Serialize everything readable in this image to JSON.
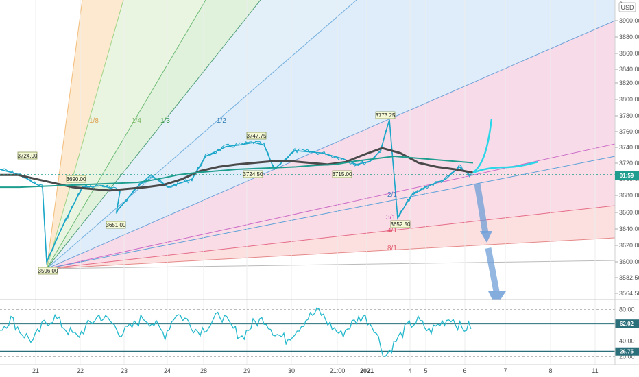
{
  "currency": "USD",
  "price_axis": {
    "ticks": [
      "3900.00",
      "3880.00",
      "3860.00",
      "3840.00",
      "3820.00",
      "3800.00",
      "3780.00",
      "3760.00",
      "3740.00",
      "3720.00",
      "3700.00",
      "3680.00",
      "3660.00",
      "3640.00",
      "3620.00",
      "3600.00",
      "3582.50",
      "3564.50"
    ],
    "top_partial": "3",
    "last_price_tag": "01:59"
  },
  "time_axis": [
    "21",
    "22",
    "23",
    "24",
    "28",
    "29",
    "30",
    "21:00",
    "2021",
    "4",
    "5",
    "6",
    "7",
    "8",
    "11"
  ],
  "fan_labels": [
    "1/8",
    "1/4",
    "1/3",
    "1/2",
    "2/1",
    "3/1",
    "4/1",
    "8/1"
  ],
  "price_callouts": [
    "3724.00",
    "3690.00",
    "3651.00",
    "3596.00",
    "3747.75",
    "3724.50",
    "3715.00",
    "3773.25",
    "3652.50"
  ],
  "rsi_axis": {
    "ticks": [
      "80.00",
      "40.00",
      "20.00"
    ],
    "level_high": "62.02",
    "level_low": "26.75"
  },
  "colors": {
    "ma_dark": "#4a4a4a",
    "ma_teal": "#1f9e8f",
    "rsi": "#22b8cc",
    "hand": "#2ad6e8",
    "arrow": "#6f9fd8",
    "level_line": "#2a6f7a"
  },
  "chart_data": [
    {
      "type": "line",
      "title": "",
      "x_labels": [
        "21",
        "22",
        "23",
        "24",
        "28",
        "29",
        "30",
        "21:00",
        "2021",
        "4",
        "5",
        "6",
        "7",
        "8",
        "11"
      ],
      "series": [
        {
          "values": [
            3712,
            3705,
            3695,
            3690,
            3598,
            3640,
            3690,
            3692,
            3685,
            3660,
            3690,
            3705,
            3690,
            3700,
            3728,
            3740,
            3742,
            3745,
            3742,
            3712,
            3735,
            3732,
            3725,
            3718,
            3722,
            3735,
            3773,
            3652,
            3680,
            3690,
            3700,
            3715,
            3705,
            3705
          ]
        },
        {
          "values": [
            3705,
            3705,
            3700,
            3695,
            3690,
            3688,
            3686,
            3688,
            3690,
            3693,
            3700,
            3710,
            3715,
            3718,
            3720,
            3722,
            3722,
            3720,
            3718,
            3721,
            3730,
            3738,
            3732,
            3720,
            3715,
            3712,
            3708
          ]
        },
        {
          "values": [
            3690,
            3690,
            3691,
            3692,
            3693,
            3694,
            3695,
            3696,
            3700,
            3705,
            3708,
            3710,
            3712,
            3713,
            3714,
            3715,
            3717,
            3718,
            3722,
            3725,
            3728,
            3726,
            3724,
            3722,
            3720
          ]
        }
      ],
      "ylim": [
        3552,
        3920
      ]
    },
    {
      "type": "line",
      "title": "",
      "series": [
        {
          "values": [
            55,
            68,
            50,
            40,
            62,
            70,
            55,
            45,
            60,
            72,
            65,
            50,
            58,
            70,
            62,
            48,
            75,
            66,
            52,
            60,
            74,
            58,
            45,
            62,
            68,
            50,
            42,
            55,
            70,
            78,
            60,
            48,
            62,
            72,
            58,
            20,
            40,
            58,
            66,
            52,
            62,
            70,
            55,
            60
          ]
        }
      ],
      "levels": [
        62.02,
        26.75
      ],
      "ylim": [
        10,
        90
      ]
    }
  ]
}
